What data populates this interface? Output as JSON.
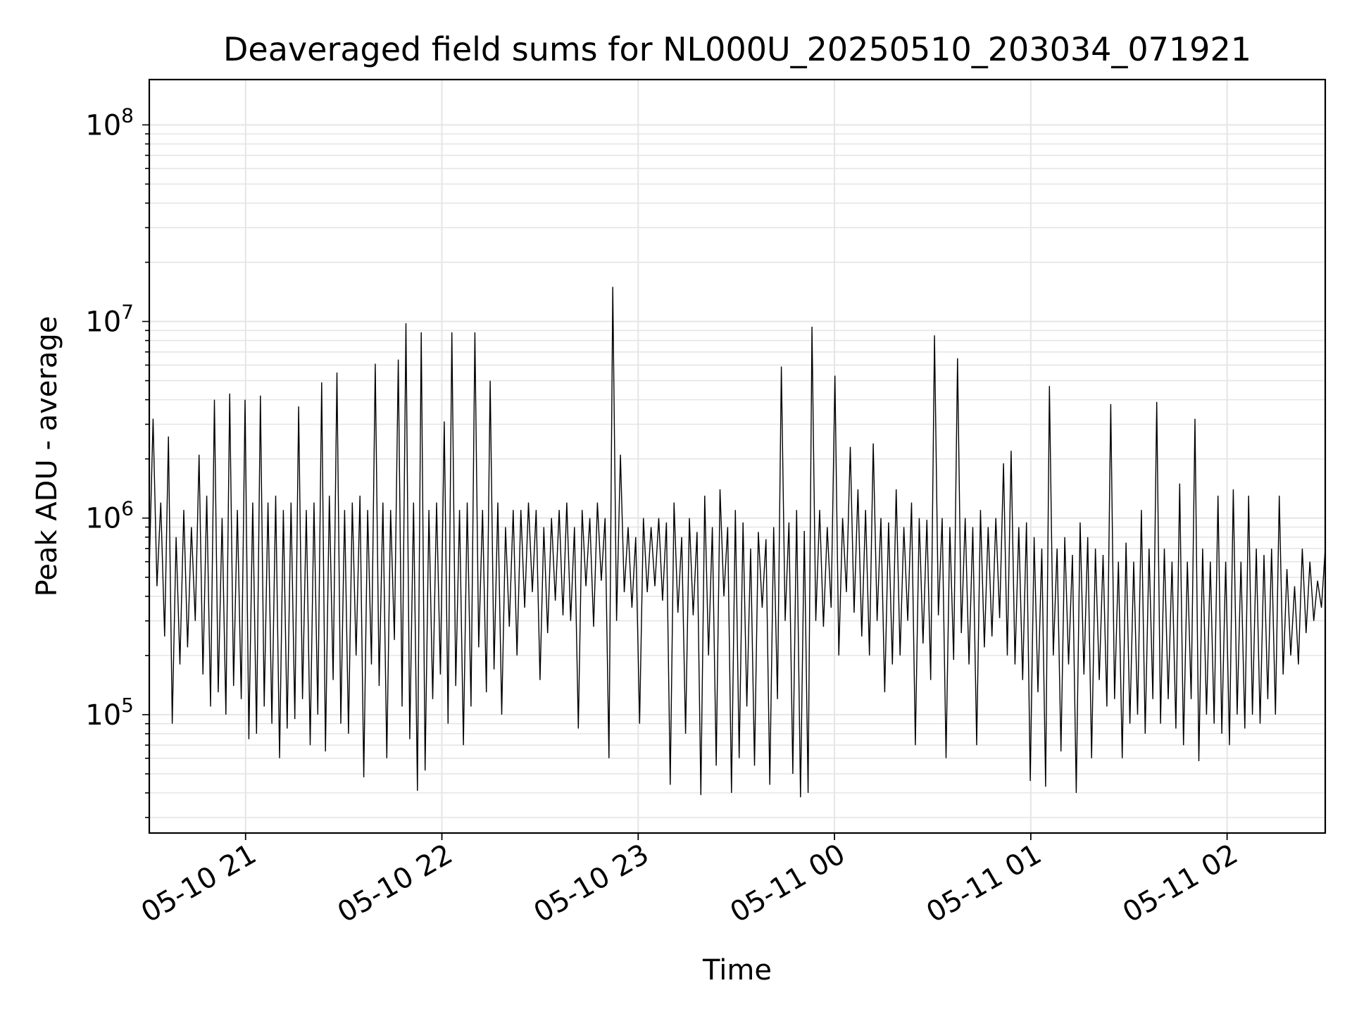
{
  "chart_data": {
    "type": "line",
    "title": "Deaveraged field sums for NL000U_20250510_203034_071921",
    "xlabel": "Time",
    "ylabel": "Peak ADU - average",
    "yscale": "log",
    "grid": true,
    "line_color": "#000000",
    "grid_color": "#e5e5e5",
    "xlim": [
      "05-10 20:30:34",
      "05-11 02:30:00"
    ],
    "ylim": [
      25000,
      170000000
    ],
    "x_ticks": [
      {
        "label": "05-10 21",
        "time": "05-10 21:00"
      },
      {
        "label": "05-10 22",
        "time": "05-10 22:00"
      },
      {
        "label": "05-10 23",
        "time": "05-10 23:00"
      },
      {
        "label": "05-11 00",
        "time": "05-11 00:00"
      },
      {
        "label": "05-11 01",
        "time": "05-11 01:00"
      },
      {
        "label": "05-11 02",
        "time": "05-11 02:00"
      }
    ],
    "y_ticks": [
      {
        "base": "10",
        "exp": "5",
        "value": 100000
      },
      {
        "base": "10",
        "exp": "6",
        "value": 1000000
      },
      {
        "base": "10",
        "exp": "7",
        "value": 10000000
      },
      {
        "base": "10",
        "exp": "8",
        "value": 100000000
      }
    ],
    "series": [
      {
        "x_start": "05-10 20:30:34",
        "x_end": "05-11 02:30:00",
        "values": [
          550000,
          3200000,
          450000,
          1200000,
          250000,
          2600000,
          90000,
          800000,
          180000,
          1100000,
          220000,
          900000,
          300000,
          2100000,
          160000,
          1300000,
          110000,
          4000000,
          130000,
          1000000,
          100000,
          4300000,
          140000,
          1100000,
          120000,
          4000000,
          75000,
          1200000,
          80000,
          4200000,
          110000,
          1200000,
          90000,
          1300000,
          60000,
          1100000,
          85000,
          1200000,
          95000,
          3700000,
          120000,
          1100000,
          70000,
          1200000,
          100000,
          4900000,
          65000,
          1300000,
          150000,
          5500000,
          90000,
          1100000,
          80000,
          1200000,
          200000,
          1300000,
          48000,
          1100000,
          180000,
          6100000,
          140000,
          1200000,
          60000,
          1100000,
          240000,
          6400000,
          110000,
          9800000,
          75000,
          1200000,
          41000,
          8800000,
          52000,
          1100000,
          120000,
          1200000,
          160000,
          3100000,
          90000,
          8800000,
          140000,
          1100000,
          70000,
          1200000,
          110000,
          8800000,
          220000,
          1100000,
          130000,
          5000000,
          170000,
          1200000,
          100000,
          900000,
          280000,
          1100000,
          200000,
          1100000,
          350000,
          1200000,
          420000,
          1100000,
          150000,
          900000,
          260000,
          1000000,
          380000,
          1100000,
          320000,
          1200000,
          300000,
          900000,
          85000,
          1100000,
          450000,
          1000000,
          280000,
          1200000,
          480000,
          1000000,
          60000,
          15000000,
          300000,
          2100000,
          420000,
          900000,
          350000,
          800000,
          90000,
          1000000,
          420000,
          900000,
          450000,
          1000000,
          380000,
          950000,
          44000,
          1200000,
          330000,
          800000,
          80000,
          1000000,
          320000,
          850000,
          39000,
          1300000,
          200000,
          900000,
          55000,
          1400000,
          400000,
          900000,
          40000,
          1100000,
          60000,
          950000,
          110000,
          700000,
          55000,
          850000,
          350000,
          780000,
          44000,
          900000,
          120000,
          5900000,
          300000,
          950000,
          50000,
          1100000,
          38000,
          860000,
          40000,
          9400000,
          300000,
          1100000,
          280000,
          900000,
          350000,
          5300000,
          200000,
          1000000,
          420000,
          2300000,
          330000,
          1400000,
          250000,
          1100000,
          200000,
          2400000,
          300000,
          1000000,
          130000,
          950000,
          180000,
          1400000,
          200000,
          900000,
          300000,
          1200000,
          70000,
          1000000,
          230000,
          980000,
          150000,
          8500000,
          320000,
          1000000,
          60000,
          900000,
          190000,
          6500000,
          260000,
          1000000,
          180000,
          900000,
          70000,
          1100000,
          220000,
          900000,
          250000,
          1000000,
          310000,
          1900000,
          200000,
          2200000,
          180000,
          900000,
          150000,
          950000,
          46000,
          800000,
          130000,
          700000,
          43000,
          4700000,
          200000,
          700000,
          65000,
          800000,
          180000,
          650000,
          40000,
          950000,
          160000,
          800000,
          60000,
          700000,
          150000,
          650000,
          110000,
          3800000,
          120000,
          600000,
          60000,
          750000,
          90000,
          600000,
          100000,
          1100000,
          80000,
          700000,
          120000,
          3900000,
          90000,
          700000,
          120000,
          600000,
          85000,
          1500000,
          70000,
          600000,
          120000,
          3200000,
          58000,
          700000,
          100000,
          600000,
          90000,
          1300000,
          80000,
          600000,
          70000,
          1400000,
          100000,
          600000,
          85000,
          1300000,
          100000,
          700000,
          90000,
          650000,
          120000,
          700000,
          100000,
          1300000,
          160000,
          550000,
          200000,
          450000,
          180000,
          700000,
          260000,
          600000,
          300000,
          480000,
          350000,
          700000
        ]
      }
    ]
  }
}
